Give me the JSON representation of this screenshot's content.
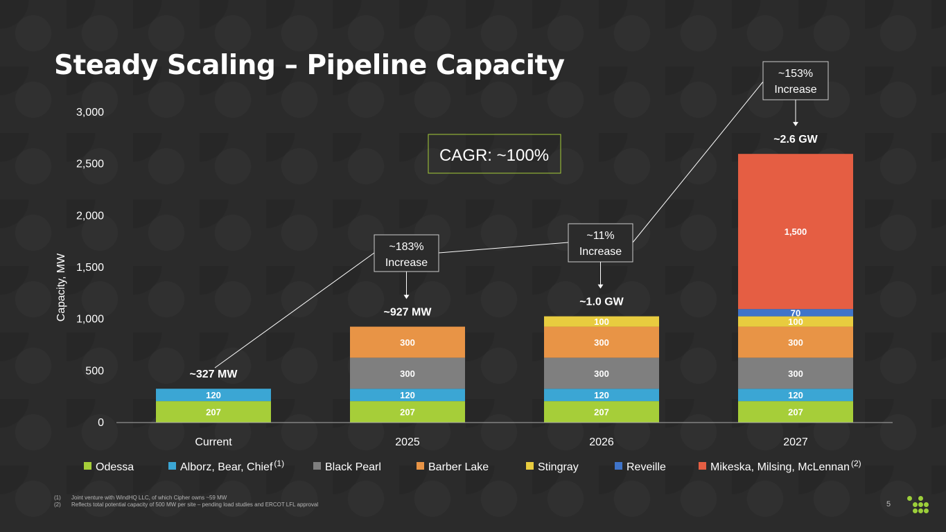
{
  "title": "Steady Scaling – Pipeline Capacity",
  "footnotes": [
    {
      "num": "(1)",
      "text": "Joint venture with WindHQ LLC, of which Cipher owns ~59 MW"
    },
    {
      "num": "(2)",
      "text": "Reflects total potential capacity of 500 MW per site – pending load studies and ERCOT LFL approval"
    }
  ],
  "page_number": "5",
  "chart_data": {
    "type": "bar",
    "stacked": true,
    "categories": [
      "Current",
      "2025",
      "2026",
      "2027"
    ],
    "ylabel": "Capacity, MW",
    "ylim": [
      0,
      3000
    ],
    "yticks": [
      0,
      500,
      1000,
      1500,
      2000,
      2500,
      3000
    ],
    "ytick_labels": [
      "0",
      "500",
      "1,000",
      "1,500",
      "2,000",
      "2,500",
      "3,000"
    ],
    "series": [
      {
        "name": "Odessa",
        "footnote": "",
        "color": "#a6ce39",
        "values": [
          207,
          207,
          207,
          207
        ],
        "labels": [
          "207",
          "207",
          "207",
          "207"
        ]
      },
      {
        "name": "Alborz, Bear, Chief",
        "footnote": "(1)",
        "color": "#3ba6d4",
        "values": [
          120,
          120,
          120,
          120
        ],
        "labels": [
          "120",
          "120",
          "120",
          "120"
        ]
      },
      {
        "name": "Black Pearl",
        "footnote": "",
        "color": "#7f7f7f",
        "values": [
          0,
          300,
          300,
          300
        ],
        "labels": [
          "",
          "300",
          "300",
          "300"
        ]
      },
      {
        "name": "Barber Lake",
        "footnote": "",
        "color": "#e89446",
        "values": [
          0,
          300,
          300,
          300
        ],
        "labels": [
          "",
          "300",
          "300",
          "300"
        ]
      },
      {
        "name": "Stingray",
        "footnote": "",
        "color": "#e8cc3f",
        "values": [
          0,
          0,
          100,
          100
        ],
        "labels": [
          "",
          "",
          "100",
          "100"
        ]
      },
      {
        "name": "Reveille",
        "footnote": "",
        "color": "#3f74c9",
        "values": [
          0,
          0,
          0,
          70
        ],
        "labels": [
          "",
          "",
          "",
          "70"
        ]
      },
      {
        "name": "Mikeska, Milsing, McLennan",
        "footnote": "(2)",
        "color": "#e55e43",
        "values": [
          0,
          0,
          0,
          1500
        ],
        "labels": [
          "",
          "",
          "",
          "1,500"
        ]
      }
    ],
    "totals": [
      "~327 MW",
      "~927 MW",
      "~1.0 GW",
      "~2.6 GW"
    ],
    "legend_position": "bottom",
    "annotations": {
      "cagr": "CAGR: ~100%",
      "increases": [
        {
          "line1": "~183%",
          "line2": "Increase",
          "target": "2025"
        },
        {
          "line1": "~11%",
          "line2": "Increase",
          "target": "2026"
        },
        {
          "line1": "~153%",
          "line2": "Increase",
          "target": "2027"
        }
      ]
    },
    "grid": false
  }
}
